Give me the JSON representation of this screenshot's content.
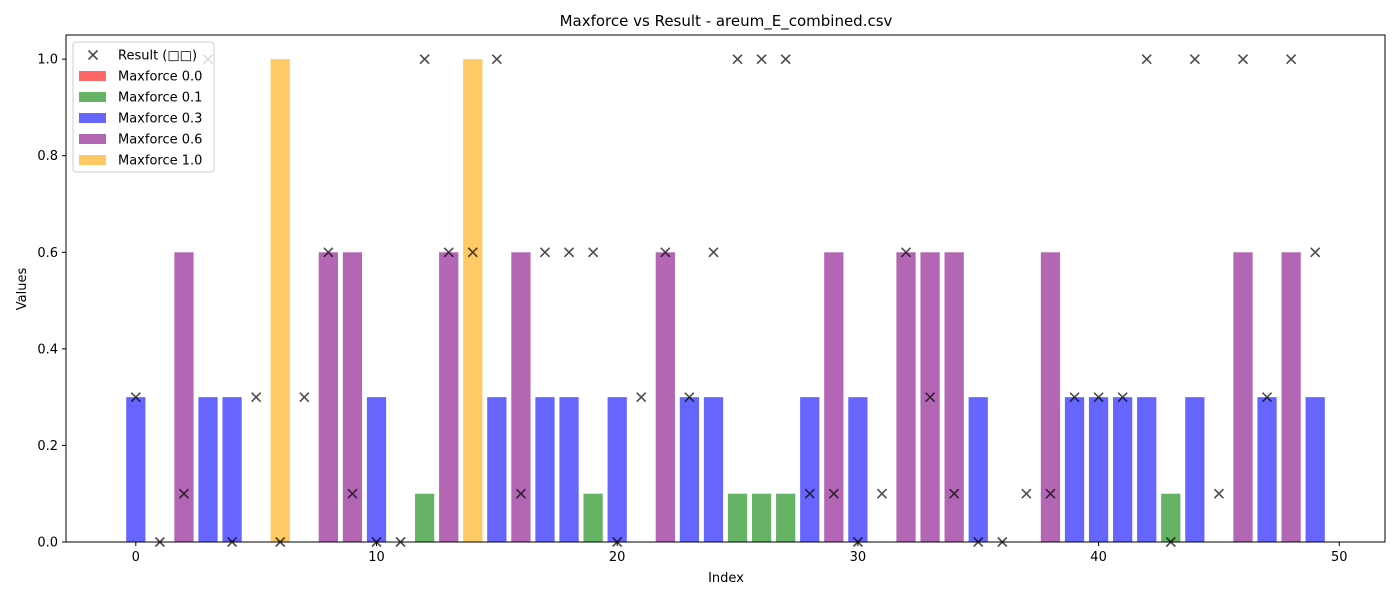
{
  "chart_data": {
    "type": "bar",
    "title": "Maxforce vs Result - areum_E_combined.csv",
    "xlabel": "Index",
    "ylabel": "Values",
    "xlim": [
      -2.9,
      51.9
    ],
    "ylim": [
      0,
      1.05
    ],
    "x_ticks": [
      0,
      10,
      20,
      30,
      40,
      50
    ],
    "x_tick_labels": [
      "0",
      "10",
      "20",
      "30",
      "40",
      "50"
    ],
    "y_ticks": [
      0,
      0.2,
      0.4,
      0.6,
      0.8,
      1.0
    ],
    "y_tick_labels": [
      "0.0",
      "0.2",
      "0.4",
      "0.6",
      "0.8",
      "1.0"
    ],
    "grid": false,
    "legend_position": "top-left",
    "legend": [
      {
        "label": "Result (□□)",
        "kind": "marker",
        "color": "#000000"
      },
      {
        "label": "Maxforce 0.0",
        "kind": "bar",
        "color": "#ff0000"
      },
      {
        "label": "Maxforce 0.1",
        "kind": "bar",
        "color": "#008000"
      },
      {
        "label": "Maxforce 0.3",
        "kind": "bar",
        "color": "#0000ff"
      },
      {
        "label": "Maxforce 0.6",
        "kind": "bar",
        "color": "#800080"
      },
      {
        "label": "Maxforce 1.0",
        "kind": "bar",
        "color": "#ffa500"
      }
    ],
    "maxforce_colors": {
      "0.0": "#ff0000",
      "0.1": "#008000",
      "0.3": "#0000ff",
      "0.6": "#800080",
      "1.0": "#ffa500"
    },
    "bar_alpha": 0.6,
    "index": [
      0,
      1,
      2,
      3,
      4,
      5,
      6,
      7,
      8,
      9,
      10,
      11,
      12,
      13,
      14,
      15,
      16,
      17,
      18,
      19,
      20,
      21,
      22,
      23,
      24,
      25,
      26,
      27,
      28,
      29,
      30,
      31,
      32,
      33,
      34,
      35,
      36,
      37,
      38,
      39,
      40,
      41,
      42,
      43,
      44,
      45,
      46,
      47,
      48,
      49
    ],
    "maxforce": [
      0.3,
      0,
      0.6,
      0.3,
      0.3,
      0,
      1.0,
      0,
      0.6,
      0.6,
      0.3,
      0,
      0.1,
      0.6,
      1.0,
      0.3,
      0.6,
      0.3,
      0.3,
      0.1,
      0.3,
      0,
      0.6,
      0.3,
      0.3,
      0.1,
      0.1,
      0.1,
      0.3,
      0.6,
      0.3,
      0,
      0.6,
      0.6,
      0.6,
      0.3,
      0,
      0,
      0.6,
      0.3,
      0.3,
      0.3,
      0.3,
      0.1,
      0.3,
      0,
      0.6,
      0.3,
      0.6,
      0.3
    ],
    "result": [
      0.3,
      0,
      0.1,
      1.0,
      0,
      0.3,
      0,
      0.3,
      0.6,
      0.1,
      0,
      0,
      1.0,
      0.6,
      0.6,
      1.0,
      0.1,
      0.6,
      0.6,
      0.6,
      0,
      0.3,
      0.6,
      0.3,
      0.6,
      1.0,
      1.0,
      1.0,
      0.1,
      0.1,
      0,
      0.1,
      0.6,
      0.3,
      0.1,
      0,
      0,
      0.1,
      0.1,
      0.3,
      0.3,
      0.3,
      1.0,
      0,
      1.0,
      0.1,
      1.0,
      0.3,
      1.0,
      0.6
    ]
  }
}
